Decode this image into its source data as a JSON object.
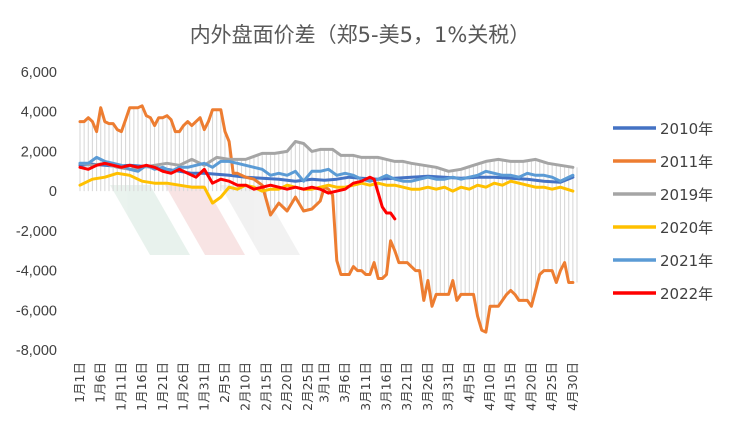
{
  "chart_data": {
    "type": "line",
    "title": "内外盘面价差（郑5-美5，1%关税）",
    "ylim": [
      -8000,
      6000
    ],
    "yticks": [
      6000,
      4000,
      2000,
      0,
      -2000,
      -4000,
      -6000,
      -8000
    ],
    "ytick_labels": [
      "6,000",
      "4,000",
      "2,000",
      "0",
      "-2,000",
      "-4,000",
      "-6,000",
      "-8,000"
    ],
    "x_domain": [
      0,
      120
    ],
    "xtick_labels": [
      "1月1日",
      "1月6日",
      "1月11日",
      "1月16日",
      "1月21日",
      "1月26日",
      "1月31日",
      "2月5日",
      "2月10日",
      "2月15日",
      "2月20日",
      "2月25日",
      "3月1日",
      "3月6日",
      "3月11日",
      "3月16日",
      "3月21日",
      "3月26日",
      "3月31日",
      "4月5日",
      "4月10日",
      "4月15日",
      "4月20日",
      "4月25日",
      "4月30日"
    ],
    "xtick_positions": [
      0,
      5,
      10,
      15,
      20,
      25,
      30,
      35,
      40,
      45,
      50,
      55,
      59,
      64,
      69,
      74,
      79,
      84,
      89,
      94,
      99,
      104,
      109,
      114,
      119
    ],
    "series": [
      {
        "name": "2010年",
        "color": "#4472C4",
        "x": [
          0,
          3,
          6,
          9,
          12,
          15,
          18,
          21,
          24,
          27,
          30,
          33,
          36,
          40,
          44,
          48,
          52,
          56,
          59,
          62,
          65,
          68,
          72,
          76,
          80,
          84,
          88,
          92,
          96,
          100,
          104,
          108,
          112,
          116,
          119
        ],
        "y": [
          1300,
          1350,
          1300,
          1250,
          1300,
          1250,
          1200,
          1100,
          1000,
          900,
          900,
          850,
          800,
          700,
          650,
          600,
          500,
          600,
          550,
          600,
          700,
          650,
          600,
          650,
          700,
          750,
          700,
          650,
          700,
          700,
          650,
          600,
          500,
          450,
          700
        ]
      },
      {
        "name": "2011年",
        "color": "#ED7D31",
        "x": [
          0,
          1,
          2,
          3,
          4,
          5,
          6,
          7,
          8,
          9,
          10,
          11,
          12,
          13,
          14,
          15,
          16,
          17,
          18,
          19,
          20,
          21,
          22,
          23,
          24,
          25,
          26,
          27,
          28,
          29,
          30,
          31,
          32,
          33,
          34,
          35,
          36,
          37,
          38,
          40,
          42,
          44,
          46,
          48,
          50,
          52,
          54,
          56,
          58,
          59,
          60,
          61,
          62,
          63,
          64,
          65,
          66,
          67,
          68,
          69,
          70,
          71,
          72,
          73,
          74,
          75,
          76,
          77,
          78,
          79,
          80,
          81,
          82,
          83,
          84,
          85,
          86,
          87,
          88,
          89,
          90,
          91,
          92,
          93,
          94,
          95,
          96,
          97,
          98,
          99,
          100,
          101,
          102,
          103,
          104,
          105,
          106,
          107,
          108,
          109,
          110,
          111,
          112,
          113,
          114,
          115,
          116,
          117,
          118,
          119
        ],
        "y": [
          3500,
          3500,
          3700,
          3500,
          3000,
          4200,
          3500,
          3400,
          3400,
          3100,
          3000,
          3600,
          4200,
          4200,
          4200,
          4300,
          3800,
          3700,
          3300,
          3700,
          3700,
          3800,
          3600,
          3000,
          3000,
          3300,
          3500,
          3300,
          3500,
          3700,
          3100,
          3500,
          4100,
          4100,
          4100,
          3000,
          2500,
          900,
          900,
          700,
          600,
          300,
          -1200,
          -600,
          -1000,
          -300,
          -1000,
          -900,
          -500,
          200,
          100,
          -200,
          -3500,
          -4200,
          -4200,
          -4200,
          -3800,
          -4000,
          -4000,
          -4200,
          -4200,
          -3600,
          -4400,
          -4400,
          -4200,
          -2500,
          -3000,
          -3600,
          -3600,
          -3600,
          -3800,
          -4000,
          -4000,
          -5500,
          -4500,
          -5800,
          -5200,
          -5200,
          -5200,
          -5200,
          -4500,
          -5500,
          -5200,
          -5200,
          -5200,
          -5200,
          -6300,
          -7000,
          -7100,
          -5800,
          -5800,
          -5800,
          -5500,
          -5200,
          -5000,
          -5200,
          -5500,
          -5500,
          -5500,
          -5800,
          -5000,
          -4200,
          -4000,
          -4000,
          -4000,
          -4600,
          -4000,
          -3600,
          -4600,
          -4600
        ]
      },
      {
        "name": "2019年",
        "color": "#A5A5A5",
        "x": [
          0,
          3,
          6,
          9,
          12,
          15,
          18,
          21,
          24,
          27,
          30,
          33,
          36,
          40,
          44,
          47,
          50,
          52,
          54,
          56,
          58,
          59,
          61,
          63,
          66,
          68,
          70,
          72,
          74,
          76,
          78,
          80,
          83,
          86,
          89,
          92,
          95,
          98,
          101,
          104,
          107,
          110,
          113,
          116,
          119
        ],
        "y": [
          1400,
          1300,
          1400,
          1200,
          1100,
          1200,
          1300,
          1400,
          1300,
          1600,
          1300,
          1700,
          1600,
          1600,
          1900,
          1900,
          2000,
          2500,
          2400,
          2000,
          2100,
          2100,
          2100,
          1800,
          1800,
          1700,
          1700,
          1700,
          1600,
          1500,
          1500,
          1400,
          1300,
          1200,
          1000,
          1100,
          1300,
          1500,
          1600,
          1500,
          1500,
          1600,
          1400,
          1300,
          1200
        ]
      },
      {
        "name": "2020年",
        "color": "#FFC000",
        "x": [
          0,
          3,
          6,
          9,
          12,
          15,
          18,
          21,
          24,
          27,
          30,
          32,
          34,
          36,
          38,
          40,
          42,
          44,
          46,
          48,
          50,
          52,
          54,
          56,
          58,
          60,
          62,
          64,
          66,
          68,
          70,
          72,
          74,
          76,
          78,
          80,
          82,
          84,
          86,
          88,
          90,
          92,
          94,
          96,
          98,
          100,
          102,
          104,
          106,
          108,
          110,
          112,
          114,
          116,
          119
        ],
        "y": [
          300,
          600,
          700,
          900,
          800,
          500,
          400,
          400,
          300,
          200,
          200,
          -600,
          -300,
          200,
          100,
          300,
          200,
          0,
          100,
          100,
          300,
          200,
          100,
          100,
          200,
          300,
          200,
          200,
          300,
          400,
          300,
          400,
          300,
          300,
          200,
          100,
          100,
          200,
          100,
          200,
          0,
          200,
          100,
          300,
          200,
          400,
          300,
          500,
          400,
          300,
          200,
          200,
          100,
          200,
          0
        ]
      },
      {
        "name": "2021年",
        "color": "#5B9BD5",
        "x": [
          0,
          2,
          4,
          6,
          8,
          10,
          12,
          14,
          16,
          18,
          20,
          22,
          24,
          26,
          28,
          30,
          32,
          34,
          36,
          38,
          40,
          42,
          44,
          46,
          48,
          50,
          52,
          54,
          56,
          58,
          60,
          62,
          64,
          66,
          68,
          70,
          72,
          74,
          76,
          78,
          80,
          82,
          84,
          86,
          88,
          90,
          92,
          94,
          96,
          98,
          100,
          102,
          104,
          106,
          108,
          110,
          112,
          114,
          116,
          118,
          119
        ],
        "y": [
          1400,
          1400,
          1700,
          1500,
          1400,
          1300,
          1100,
          1000,
          1300,
          1100,
          1200,
          1000,
          1200,
          1200,
          1300,
          1400,
          1200,
          1500,
          1500,
          1400,
          1300,
          1200,
          1100,
          800,
          900,
          800,
          1000,
          500,
          1000,
          1000,
          1100,
          800,
          900,
          800,
          600,
          500,
          600,
          800,
          600,
          500,
          500,
          600,
          700,
          600,
          600,
          700,
          600,
          700,
          800,
          1000,
          900,
          800,
          800,
          700,
          900,
          800,
          800,
          700,
          500,
          700,
          800
        ]
      },
      {
        "name": "2022年",
        "color": "#FF0000",
        "x": [
          0,
          2,
          4,
          6,
          8,
          10,
          12,
          14,
          16,
          18,
          20,
          22,
          24,
          26,
          28,
          30,
          32,
          34,
          36,
          38,
          40,
          42,
          44,
          46,
          48,
          50,
          52,
          54,
          56,
          58,
          60,
          62,
          64,
          66,
          68,
          70,
          71,
          72,
          73,
          74,
          75,
          76
        ],
        "y": [
          1200,
          1100,
          1300,
          1400,
          1300,
          1200,
          1300,
          1200,
          1300,
          1200,
          1000,
          900,
          1100,
          900,
          700,
          1100,
          400,
          600,
          500,
          300,
          300,
          100,
          200,
          300,
          200,
          100,
          200,
          100,
          200,
          100,
          -100,
          0,
          100,
          400,
          500,
          700,
          600,
          -100,
          -800,
          -1100,
          -1100,
          -1400
        ]
      }
    ],
    "legend_position": "right",
    "grid": false
  }
}
